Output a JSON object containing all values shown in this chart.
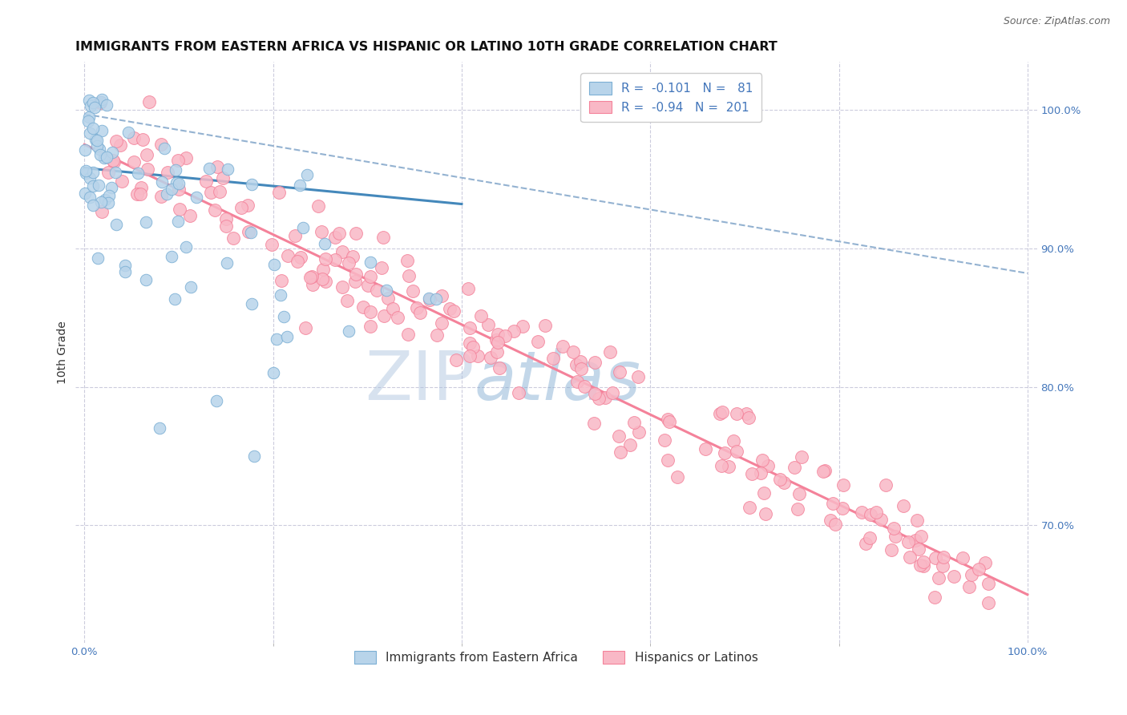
{
  "title": "IMMIGRANTS FROM EASTERN AFRICA VS HISPANIC OR LATINO 10TH GRADE CORRELATION CHART",
  "source": "Source: ZipAtlas.com",
  "ylabel": "10th Grade",
  "xlim": [
    -1.0,
    101.0
  ],
  "ylim": [
    0.615,
    1.035
  ],
  "blue_color": "#7BAFD4",
  "blue_fill": "#B8D4EA",
  "pink_color": "#F4829A",
  "pink_fill": "#F9B8C6",
  "blue_R": -0.101,
  "blue_N": 81,
  "pink_R": -0.94,
  "pink_N": 201,
  "legend_label_blue": "Immigrants from Eastern Africa",
  "legend_label_pink": "Hispanics or Latinos",
  "watermark_zip": "ZIP",
  "watermark_atlas": "atlas",
  "background_color": "#FFFFFF",
  "grid_color": "#CCCCDD",
  "title_fontsize": 11.5,
  "axis_label_fontsize": 10,
  "tick_fontsize": 9.5,
  "legend_fontsize": 11,
  "source_fontsize": 9
}
